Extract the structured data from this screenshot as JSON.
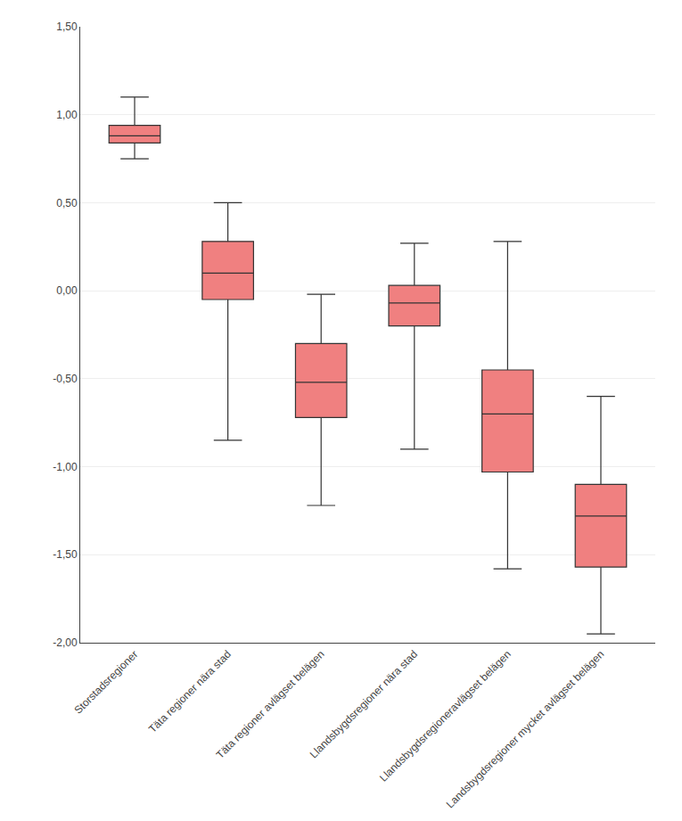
{
  "chart_data": {
    "type": "box",
    "categories": [
      "Storstadsregioner",
      "Täta regioner nära stad",
      "Täta regioner avlägset belägen",
      "Llandsbygdsregioner nära stad",
      "Llandsbygdsregioneravlägset belägen",
      "Landsbygdsregioner mycket avlägset belägen"
    ],
    "stats": [
      {
        "whislo": 0.75,
        "q1": 0.84,
        "med": 0.88,
        "q3": 0.94,
        "whishi": 1.1
      },
      {
        "whislo": -0.85,
        "q1": -0.05,
        "med": 0.1,
        "q3": 0.28,
        "whishi": 0.5
      },
      {
        "whislo": -1.22,
        "q1": -0.72,
        "med": -0.52,
        "q3": -0.3,
        "whishi": -0.02
      },
      {
        "whislo": -0.9,
        "q1": -0.2,
        "med": -0.07,
        "q3": 0.03,
        "whishi": 0.27
      },
      {
        "whislo": -1.58,
        "q1": -1.03,
        "med": -0.7,
        "q3": -0.45,
        "whishi": 0.28
      },
      {
        "whislo": -1.95,
        "q1": -1.57,
        "med": -1.28,
        "q3": -1.1,
        "whishi": -0.6
      }
    ],
    "color": "#f08080",
    "ylim": [
      -2.0,
      1.5
    ],
    "yticks": [
      {
        "value": -2.0,
        "label": "-2,00"
      },
      {
        "value": -1.5,
        "label": "-1,50"
      },
      {
        "value": -1.0,
        "label": "-1,00"
      },
      {
        "value": -0.5,
        "label": "-0,50"
      },
      {
        "value": 0.0,
        "label": "0,00"
      },
      {
        "value": 0.5,
        "label": "0,50"
      },
      {
        "value": 1.0,
        "label": "1,00"
      },
      {
        "value": 1.5,
        "label": "1,50"
      }
    ],
    "grid": true
  }
}
